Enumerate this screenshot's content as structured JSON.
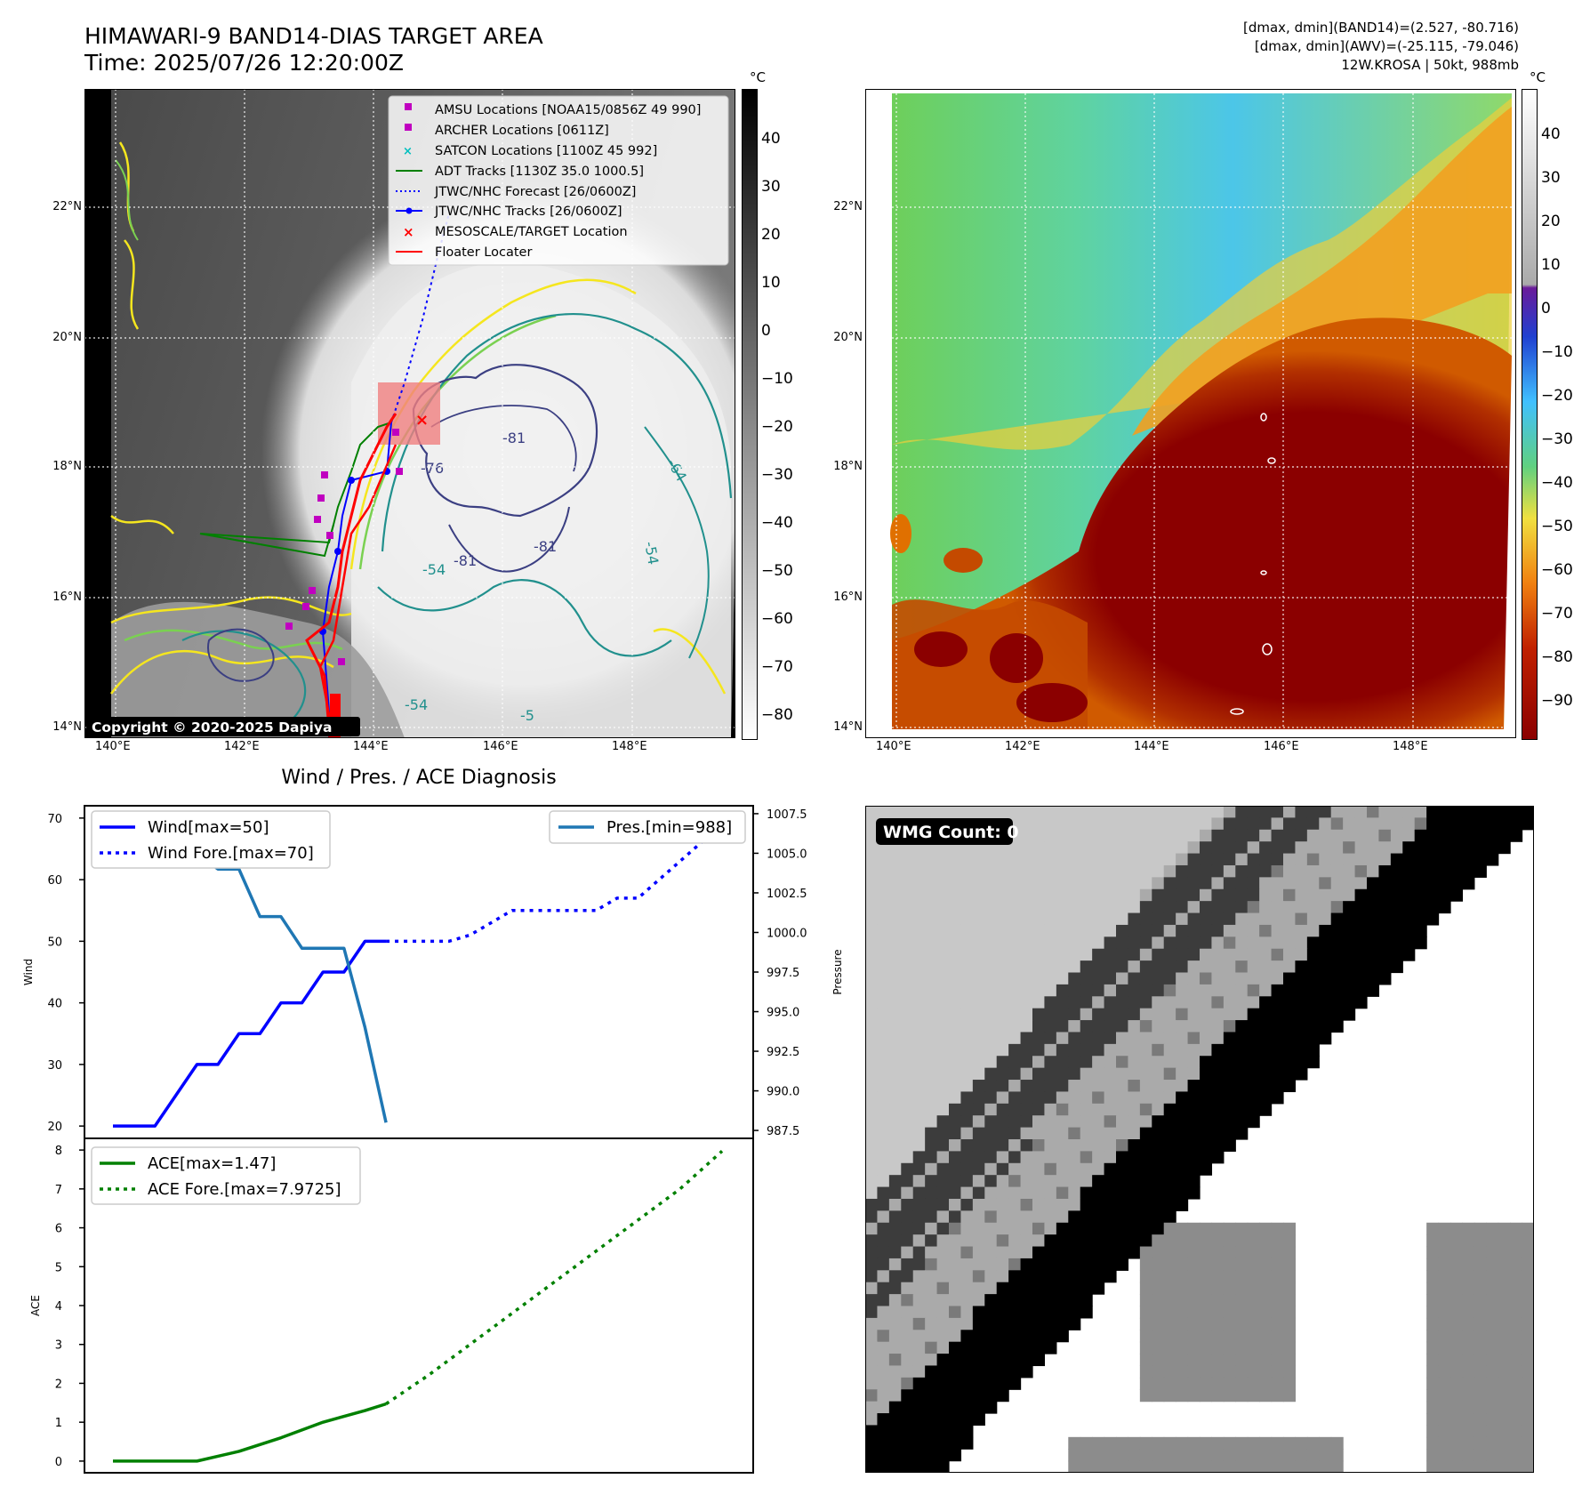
{
  "header": {
    "title_line1": "HIMAWARI-9 BAND14-DIAS TARGET AREA",
    "title_line2": "Time: 2025/07/26 12:20:00Z",
    "stats_line1": "[dmax, dmin](BAND14)=(2.527, -80.716)",
    "stats_line2": "[dmax, dmin](AWV)=(-25.115, -79.046)",
    "stats_line3": "12W.KROSA | 50kt, 988mb"
  },
  "map_panels": {
    "lon_ticks": [
      "140°E",
      "142°E",
      "144°E",
      "146°E",
      "148°E"
    ],
    "lat_ticks": [
      "22°N",
      "20°N",
      "18°N",
      "16°N",
      "14°N"
    ],
    "copyright": "Copyright © 2020-2025 Dapiya",
    "contour_labels": [
      "-76",
      "-81",
      "-81",
      "-81",
      "-64",
      "-54",
      "-54",
      "-54",
      "-5"
    ],
    "colors": {
      "cyan_contour": "#21908d",
      "navy_contour": "#3b3f82",
      "yellow_contour": "#f5e61e",
      "green_contour": "#7ad151"
    }
  },
  "left_map": {
    "legend": [
      {
        "label": "AMSU Locations [NOAA15/0856Z 49 990]",
        "marker": "square",
        "color": "#c000c0"
      },
      {
        "label": "ARCHER Locations [0611Z]",
        "marker": "square",
        "color": "#c000c0"
      },
      {
        "label": "SATCON Locations [1100Z 45 992]",
        "marker": "x",
        "color": "#00bfbf"
      },
      {
        "label": "ADT Tracks [1130Z 35.0 1000.5]",
        "marker": "line",
        "color": "#008000"
      },
      {
        "label": "JTWC/NHC Forecast [26/0600Z]",
        "marker": "dotted",
        "color": "#0000ff"
      },
      {
        "label": "JTWC/NHC Tracks [26/0600Z]",
        "marker": "line-dot",
        "color": "#0000ff"
      },
      {
        "label": "MESOSCALE/TARGET Location",
        "marker": "x",
        "color": "#ff0000"
      },
      {
        "label": "Floater Locater",
        "marker": "line",
        "color": "#ff0000"
      }
    ],
    "colorbar": {
      "unit": "°C",
      "ticks": [
        "40",
        "30",
        "20",
        "10",
        "0",
        "−10",
        "−20",
        "−30",
        "−40",
        "−50",
        "−60",
        "−70",
        "−80"
      ]
    }
  },
  "right_map": {
    "colorbar": {
      "unit": "°C",
      "ticks": [
        "40",
        "30",
        "20",
        "10",
        "0",
        "−10",
        "−20",
        "−30",
        "−40",
        "−50",
        "−60",
        "−70",
        "−80",
        "−90"
      ]
    }
  },
  "diagnosis": {
    "title": "Wind / Pres. / ACE Diagnosis",
    "wind_ylabel": "Wind",
    "pres_ylabel": "Pressure",
    "ace_ylabel": "ACE",
    "legend_wind": "Wind[max=50]",
    "legend_wind_fore": "Wind Fore.[max=70]",
    "legend_pres": "Pres.[min=988]",
    "legend_ace": "ACE[max=1.47]",
    "legend_ace_fore": "ACE Fore.[max=7.9725]"
  },
  "wmg_panel": {
    "label": "WMG Count: 0",
    "palette": [
      "#ffffff",
      "#8c8c8c",
      "#aaaaaa",
      "#7a7a7a",
      "#3c3c3c",
      "#000000",
      "#c8c8c8"
    ]
  },
  "chart_data": [
    {
      "type": "line",
      "panel": "wind",
      "ylim": [
        18,
        72
      ],
      "yticks": [
        20,
        30,
        40,
        50,
        60,
        70
      ],
      "series": [
        {
          "name": "Wind[max=50]",
          "color": "#0000ff",
          "style": "solid",
          "x": [
            0,
            1,
            2,
            3,
            4,
            5,
            6,
            7,
            8,
            9,
            10,
            11,
            12,
            13
          ],
          "values": [
            20,
            20,
            20,
            25,
            30,
            30,
            35,
            35,
            40,
            40,
            45,
            45,
            50,
            50
          ]
        },
        {
          "name": "Wind Fore.[max=70]",
          "color": "#0000ff",
          "style": "dotted",
          "x": [
            13,
            15,
            16,
            17,
            18,
            19,
            20,
            21,
            22,
            23,
            24,
            25,
            26,
            27,
            28,
            29
          ],
          "values": [
            50,
            50,
            50,
            51,
            53,
            55,
            55,
            55,
            55,
            55,
            57,
            57,
            60,
            63,
            66,
            70
          ]
        }
      ]
    },
    {
      "type": "line",
      "panel": "pressure",
      "ylim": [
        987,
        1008
      ],
      "yticks": [
        987.5,
        990.0,
        992.5,
        995.0,
        997.5,
        1000.0,
        1002.5,
        1005.0,
        1007.5
      ],
      "series": [
        {
          "name": "Pres.[min=988]",
          "color": "#1f77b4",
          "style": "solid",
          "x": [
            0,
            1,
            2,
            3,
            4,
            5,
            6,
            7,
            8,
            9,
            10,
            11,
            12,
            13
          ],
          "values": [
            1007,
            1007,
            1007,
            1005,
            1005,
            1004,
            1004,
            1001,
            1001,
            999,
            999,
            999,
            994,
            988
          ]
        }
      ]
    },
    {
      "type": "line",
      "panel": "ace",
      "ylim": [
        -0.3,
        8.3
      ],
      "yticks": [
        0,
        1,
        2,
        3,
        4,
        5,
        6,
        7,
        8
      ],
      "series": [
        {
          "name": "ACE[max=1.47]",
          "color": "#008000",
          "style": "solid",
          "x": [
            0,
            4,
            6,
            8,
            10,
            12,
            13
          ],
          "values": [
            0,
            0,
            0.25,
            0.6,
            1.0,
            1.3,
            1.47
          ]
        },
        {
          "name": "ACE Fore.[max=7.9725]",
          "color": "#008000",
          "style": "dotted",
          "x": [
            13,
            15,
            17,
            19,
            21,
            23,
            25,
            27,
            29
          ],
          "values": [
            1.47,
            2.2,
            3.0,
            3.8,
            4.6,
            5.4,
            6.2,
            7.0,
            7.9725
          ]
        }
      ]
    }
  ]
}
